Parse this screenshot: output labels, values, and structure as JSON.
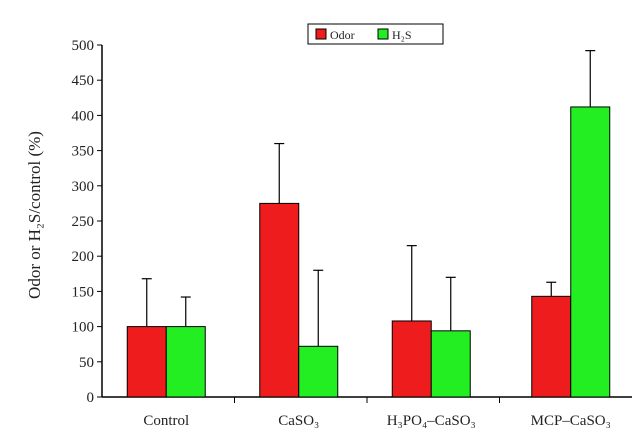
{
  "chart_data": {
    "type": "bar",
    "categories": [
      "Control",
      "CaSO₃",
      "H₃PO₄–CaSO₃",
      "MCP–CaSO₃"
    ],
    "series": [
      {
        "name": "Odor",
        "color": "#ee1c1c",
        "values": [
          100,
          275,
          108,
          143
        ],
        "errors": [
          68,
          85,
          107,
          20
        ]
      },
      {
        "name": "H₂S",
        "color": "#22ee22",
        "values": [
          100,
          72,
          94,
          412
        ],
        "errors": [
          42,
          108,
          76,
          80
        ]
      }
    ],
    "ylabel": "Odor or H₂S/control (%)",
    "ylim": [
      0,
      500
    ],
    "yticks": [
      0,
      50,
      100,
      150,
      200,
      250,
      300,
      350,
      400,
      450,
      500
    ],
    "grid": false,
    "legend_position": "top-center"
  }
}
